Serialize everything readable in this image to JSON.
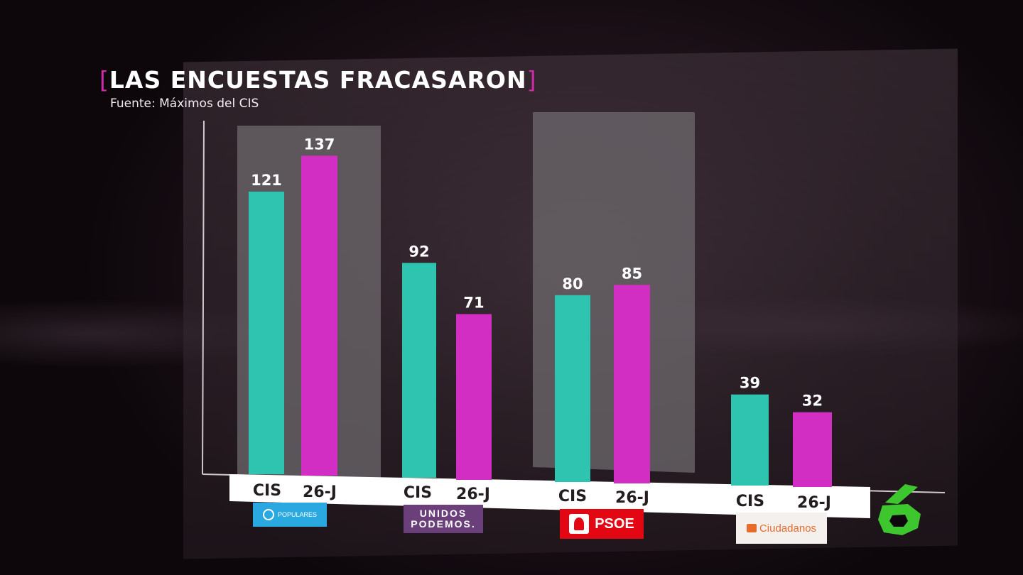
{
  "title": "LAS ENCUESTAS FRACASARON",
  "title_bracket_open": "[",
  "title_bracket_close": "]",
  "subtitle": "Fuente: Máximos del CIS",
  "chart_data": {
    "type": "bar",
    "title": "LAS ENCUESTAS FRACASARON",
    "subtitle": "Fuente: Máximos del CIS",
    "categories": [
      "PP",
      "Unidos Podemos",
      "PSOE",
      "Ciudadanos"
    ],
    "bar_labels": [
      "CIS",
      "26-J"
    ],
    "series": [
      {
        "name": "CIS",
        "values": [
          121,
          92,
          80,
          39
        ],
        "color": "#2ec4b0"
      },
      {
        "name": "26-J",
        "values": [
          137,
          71,
          85,
          32
        ],
        "color": "#d22ec4"
      }
    ],
    "ylim": [
      0,
      160
    ],
    "grid": false,
    "highlighted_groups": [
      "PP",
      "PSOE"
    ],
    "highlight_color": "#6e6a6d"
  },
  "logos": {
    "pp": "POPULARES",
    "up_line1": "UNIDOS",
    "up_line2": "PODEMOS.",
    "psoe": "PSOE",
    "cs": "Ciudadanos"
  },
  "colors": {
    "accent": "#d12aa8",
    "cis": "#2ec4b0",
    "result": "#d22ec4",
    "brand_six": "#3ec62e"
  },
  "channel_logo_icon": "lasexta-six-logo"
}
